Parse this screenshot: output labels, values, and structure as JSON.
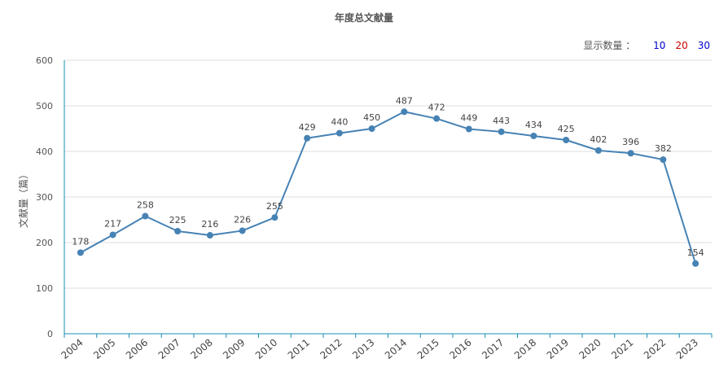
{
  "chart_data": {
    "type": "line",
    "title": "年度总文献量",
    "ylabel": "文献量（篇）",
    "xlabel": "",
    "ylim": [
      0,
      600
    ],
    "yticks": [
      0,
      100,
      200,
      300,
      400,
      500,
      600
    ],
    "categories": [
      "2004",
      "2005",
      "2006",
      "2007",
      "2008",
      "2009",
      "2010",
      "2011",
      "2012",
      "2013",
      "2014",
      "2015",
      "2016",
      "2017",
      "2018",
      "2019",
      "2020",
      "2021",
      "2022",
      "2023"
    ],
    "series": [
      {
        "values": [
          178,
          217,
          258,
          225,
          216,
          226,
          255,
          429,
          440,
          450,
          487,
          472,
          449,
          443,
          434,
          425,
          402,
          396,
          382,
          154
        ],
        "color": "#4682b4"
      }
    ],
    "grid": true,
    "axis_color": "#1a8cb0",
    "grid_color": "#dddddd"
  },
  "page_size": {
    "label": "显示数量 ：",
    "options": [
      {
        "label": "10",
        "color": "#0000cc"
      },
      {
        "label": "20",
        "color": "#cc0000"
      },
      {
        "label": "30",
        "color": "#0000cc"
      }
    ]
  }
}
